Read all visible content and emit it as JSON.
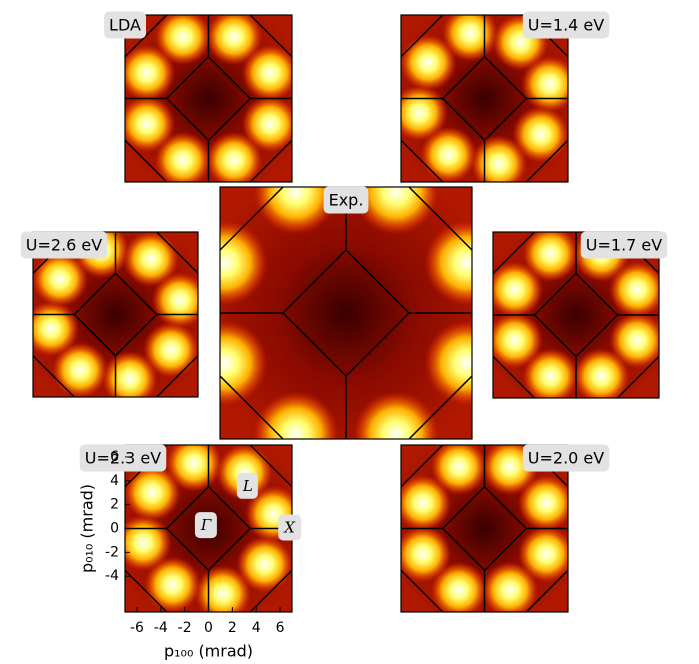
{
  "panels": [
    {
      "label": "LDA"
    },
    {
      "label": "U=1.4 eV"
    },
    {
      "label": "Exp."
    },
    {
      "label": "U=2.6 eV"
    },
    {
      "label": "U=1.7 eV"
    },
    {
      "label": "U=2.3 eV"
    },
    {
      "label": "U=2.0 eV"
    }
  ],
  "chart_data": {
    "type": "heatmap",
    "xlabel": "p₁₀₀ (mrad)",
    "ylabel": "p₀₁₀ (mrad)",
    "xlim": [
      -7,
      7
    ],
    "ylim": [
      7,
      -7
    ],
    "xticks": [
      -6,
      -4,
      -2,
      0,
      2,
      4,
      6
    ],
    "yticks": [
      -4,
      -2,
      0,
      2,
      4,
      6
    ],
    "annotations": [
      {
        "text": "Γ",
        "x": -0.2,
        "y": 0.2
      },
      {
        "text": "X",
        "x": 6.8,
        "y": 0
      },
      {
        "text": "L",
        "x": 3.3,
        "y": 3.5
      }
    ]
  }
}
